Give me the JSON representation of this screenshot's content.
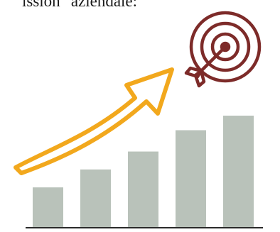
{
  "caption": {
    "text": "ission \"aziendale:"
  },
  "colors": {
    "bars": "#b9c2ba",
    "arrow": "#f2a81d",
    "target": "#7d2b29",
    "baseline": "#2a2a2a"
  },
  "icons": {
    "target": "target-icon",
    "arrow": "growth-arrow-icon"
  },
  "bars": {
    "count": 5,
    "relative_heights": [
      0.36,
      0.52,
      0.68,
      0.87,
      1.0
    ]
  }
}
